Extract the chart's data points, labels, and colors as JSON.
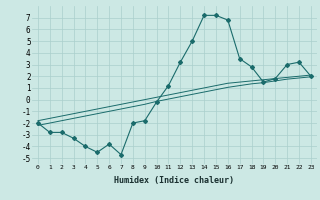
{
  "xlabel": "Humidex (Indice chaleur)",
  "x": [
    0,
    1,
    2,
    3,
    4,
    5,
    6,
    7,
    8,
    9,
    10,
    11,
    12,
    13,
    14,
    15,
    16,
    17,
    18,
    19,
    20,
    21,
    22,
    23
  ],
  "y_main": [
    -2.0,
    -2.8,
    -2.8,
    -3.3,
    -4.0,
    -4.5,
    -3.8,
    -4.7,
    -2.0,
    -1.8,
    -0.2,
    1.2,
    3.2,
    5.0,
    7.2,
    7.2,
    6.8,
    3.5,
    2.8,
    1.5,
    1.8,
    3.0,
    3.2,
    2.0
  ],
  "y_line1": [
    -1.8,
    -1.6,
    -1.4,
    -1.2,
    -1.0,
    -0.8,
    -0.6,
    -0.4,
    -0.2,
    0.0,
    0.2,
    0.4,
    0.6,
    0.8,
    1.0,
    1.2,
    1.4,
    1.5,
    1.6,
    1.7,
    1.8,
    1.9,
    2.0,
    2.1
  ],
  "y_line2": [
    -2.2,
    -2.0,
    -1.8,
    -1.6,
    -1.4,
    -1.2,
    -1.0,
    -0.8,
    -0.6,
    -0.4,
    -0.15,
    0.05,
    0.25,
    0.45,
    0.65,
    0.85,
    1.05,
    1.2,
    1.35,
    1.45,
    1.6,
    1.75,
    1.85,
    1.95
  ],
  "ylim": [
    -5.5,
    8.0
  ],
  "yticks": [
    -5,
    -4,
    -3,
    -2,
    -1,
    0,
    1,
    2,
    3,
    4,
    5,
    6,
    7
  ],
  "xticks": [
    0,
    1,
    2,
    3,
    4,
    5,
    6,
    7,
    8,
    9,
    10,
    11,
    12,
    13,
    14,
    15,
    16,
    17,
    18,
    19,
    20,
    21,
    22,
    23
  ],
  "bg_color": "#cce8e4",
  "grid_color": "#aacfcc",
  "line_color": "#1a6b6b",
  "marker": "D",
  "marker_size": 2.0
}
